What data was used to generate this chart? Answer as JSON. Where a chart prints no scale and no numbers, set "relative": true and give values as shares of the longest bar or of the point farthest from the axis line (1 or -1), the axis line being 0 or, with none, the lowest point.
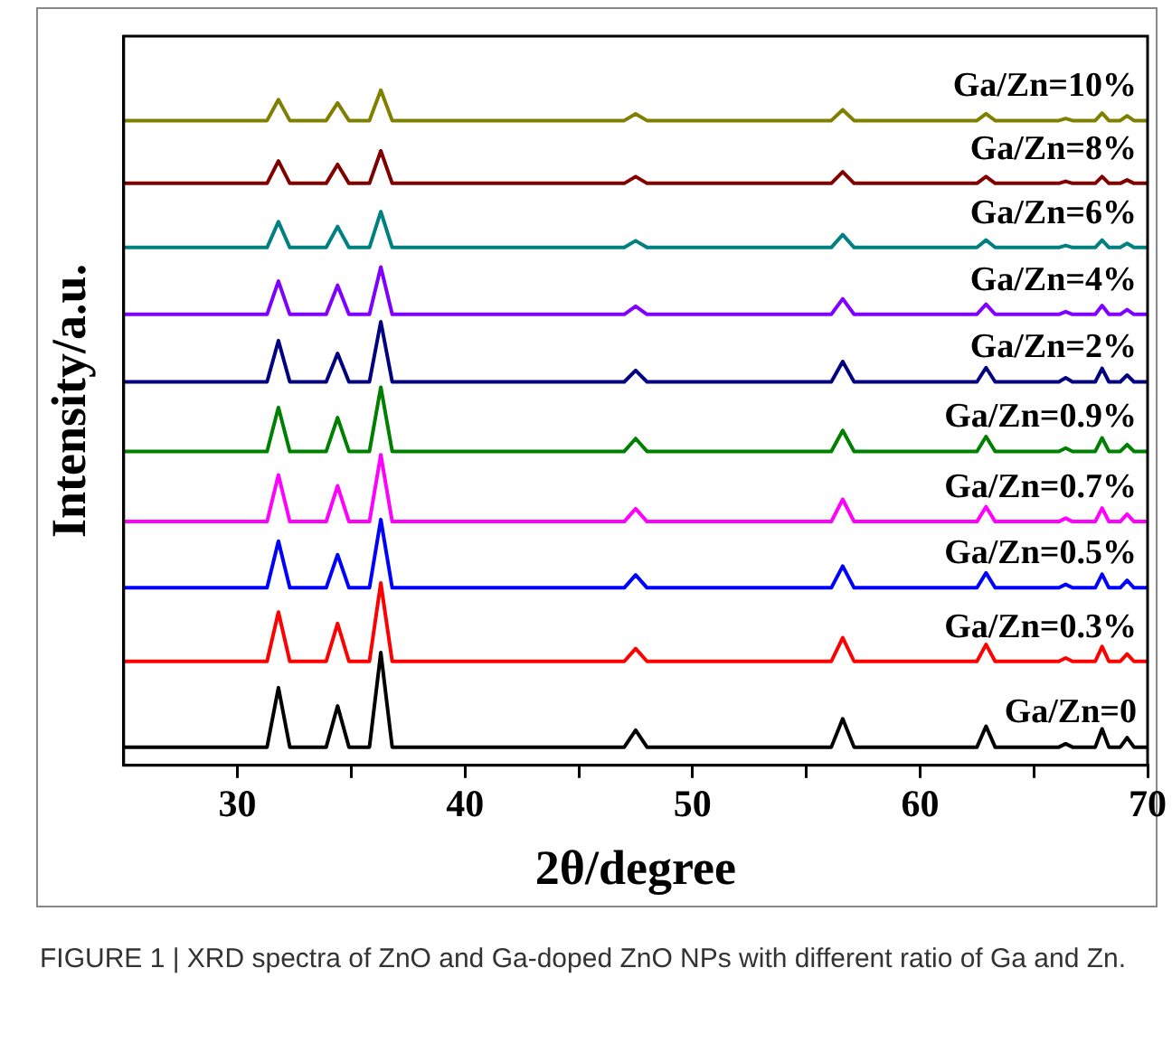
{
  "chart_data": {
    "type": "line",
    "relative": true,
    "xlabel": "2θ/degree",
    "ylabel": "Intensity/a.u.",
    "xlim": [
      25,
      70
    ],
    "xticks": [
      30,
      {
        "value": 35,
        "label": null
      },
      40,
      {
        "value": 45,
        "label": null
      },
      50,
      {
        "value": 55,
        "label": null
      },
      60,
      {
        "value": 65,
        "label": null
      },
      70
    ],
    "legend": false,
    "grid": false,
    "marker": "none",
    "line_style": "solid",
    "x": [
      25,
      31.3,
      31.8,
      32.3,
      33.9,
      34.4,
      34.9,
      35.8,
      36.3,
      36.8,
      47.0,
      47.5,
      48.0,
      56.1,
      56.6,
      57.1,
      62.5,
      62.9,
      63.3,
      66.1,
      66.4,
      66.7,
      67.7,
      68.0,
      68.3,
      68.8,
      69.1,
      69.4,
      70
    ],
    "series": [
      {
        "name": "Ga/Zn=10%",
        "color": "#808000",
        "values": [
          0.955,
          0.955,
          0.986,
          0.955,
          0.955,
          0.981,
          0.955,
          0.955,
          1.0,
          0.955,
          0.955,
          0.965,
          0.955,
          0.955,
          0.971,
          0.955,
          0.955,
          0.965,
          0.955,
          0.955,
          0.958,
          0.955,
          0.955,
          0.966,
          0.955,
          0.955,
          0.962,
          0.955,
          0.955
        ]
      },
      {
        "name": "Ga/Zn=8%",
        "color": "#800000",
        "values": [
          0.862,
          0.862,
          0.895,
          0.862,
          0.862,
          0.89,
          0.862,
          0.862,
          0.91,
          0.862,
          0.862,
          0.872,
          0.862,
          0.862,
          0.879,
          0.862,
          0.862,
          0.872,
          0.862,
          0.862,
          0.865,
          0.862,
          0.862,
          0.872,
          0.862,
          0.862,
          0.867,
          0.862,
          0.862
        ]
      },
      {
        "name": "Ga/Zn=6%",
        "color": "#008080",
        "values": [
          0.767,
          0.767,
          0.805,
          0.767,
          0.767,
          0.798,
          0.767,
          0.767,
          0.82,
          0.767,
          0.767,
          0.777,
          0.767,
          0.767,
          0.786,
          0.767,
          0.767,
          0.778,
          0.767,
          0.767,
          0.77,
          0.767,
          0.767,
          0.778,
          0.767,
          0.767,
          0.773,
          0.767,
          0.767
        ]
      },
      {
        "name": "Ga/Zn=4%",
        "color": "#8000ff",
        "values": [
          0.668,
          0.668,
          0.717,
          0.668,
          0.668,
          0.711,
          0.668,
          0.668,
          0.738,
          0.668,
          0.668,
          0.68,
          0.668,
          0.668,
          0.691,
          0.668,
          0.668,
          0.683,
          0.668,
          0.668,
          0.672,
          0.668,
          0.668,
          0.681,
          0.668,
          0.668,
          0.675,
          0.668,
          0.668
        ]
      },
      {
        "name": "Ga/Zn=2%",
        "color": "#000080",
        "values": [
          0.568,
          0.568,
          0.629,
          0.568,
          0.568,
          0.61,
          0.568,
          0.568,
          0.657,
          0.568,
          0.568,
          0.585,
          0.568,
          0.568,
          0.598,
          0.568,
          0.568,
          0.589,
          0.568,
          0.568,
          0.574,
          0.568,
          0.568,
          0.588,
          0.568,
          0.568,
          0.578,
          0.568,
          0.568
        ]
      },
      {
        "name": "Ga/Zn=0.9%",
        "color": "#008000",
        "values": [
          0.465,
          0.465,
          0.53,
          0.465,
          0.465,
          0.515,
          0.465,
          0.465,
          0.56,
          0.465,
          0.465,
          0.484,
          0.465,
          0.465,
          0.496,
          0.465,
          0.465,
          0.487,
          0.465,
          0.465,
          0.47,
          0.465,
          0.465,
          0.485,
          0.465,
          0.465,
          0.475,
          0.465,
          0.465
        ]
      },
      {
        "name": "Ga/Zn=0.7%",
        "color": "#ff00ff",
        "values": [
          0.361,
          0.361,
          0.43,
          0.361,
          0.361,
          0.414,
          0.361,
          0.361,
          0.46,
          0.361,
          0.361,
          0.38,
          0.361,
          0.361,
          0.394,
          0.361,
          0.361,
          0.383,
          0.361,
          0.361,
          0.366,
          0.361,
          0.361,
          0.381,
          0.361,
          0.361,
          0.372,
          0.361,
          0.361
        ]
      },
      {
        "name": "Ga/Zn=0.5%",
        "color": "#0000ff",
        "values": [
          0.263,
          0.263,
          0.332,
          0.263,
          0.263,
          0.312,
          0.263,
          0.263,
          0.364,
          0.263,
          0.263,
          0.282,
          0.263,
          0.263,
          0.295,
          0.263,
          0.263,
          0.285,
          0.263,
          0.263,
          0.268,
          0.263,
          0.263,
          0.283,
          0.263,
          0.263,
          0.274,
          0.263,
          0.263
        ]
      },
      {
        "name": "Ga/Zn=0.3%",
        "color": "#ff0000",
        "values": [
          0.154,
          0.154,
          0.227,
          0.154,
          0.154,
          0.21,
          0.154,
          0.154,
          0.27,
          0.154,
          0.154,
          0.173,
          0.154,
          0.154,
          0.189,
          0.154,
          0.154,
          0.179,
          0.154,
          0.154,
          0.159,
          0.154,
          0.154,
          0.176,
          0.154,
          0.154,
          0.165,
          0.154,
          0.154
        ]
      },
      {
        "name": "Ga/Zn=0",
        "color": "#000000",
        "values": [
          0.027,
          0.027,
          0.115,
          0.027,
          0.027,
          0.088,
          0.027,
          0.027,
          0.167,
          0.027,
          0.027,
          0.052,
          0.027,
          0.027,
          0.069,
          0.027,
          0.027,
          0.058,
          0.027,
          0.027,
          0.032,
          0.027,
          0.027,
          0.054,
          0.027,
          0.027,
          0.041,
          0.027,
          0.027
        ]
      }
    ],
    "annotations": [
      "FIGURE 1 | XRD spectra of ZnO and Ga-doped ZnO NPs with different ratio of Ga and Zn."
    ]
  }
}
